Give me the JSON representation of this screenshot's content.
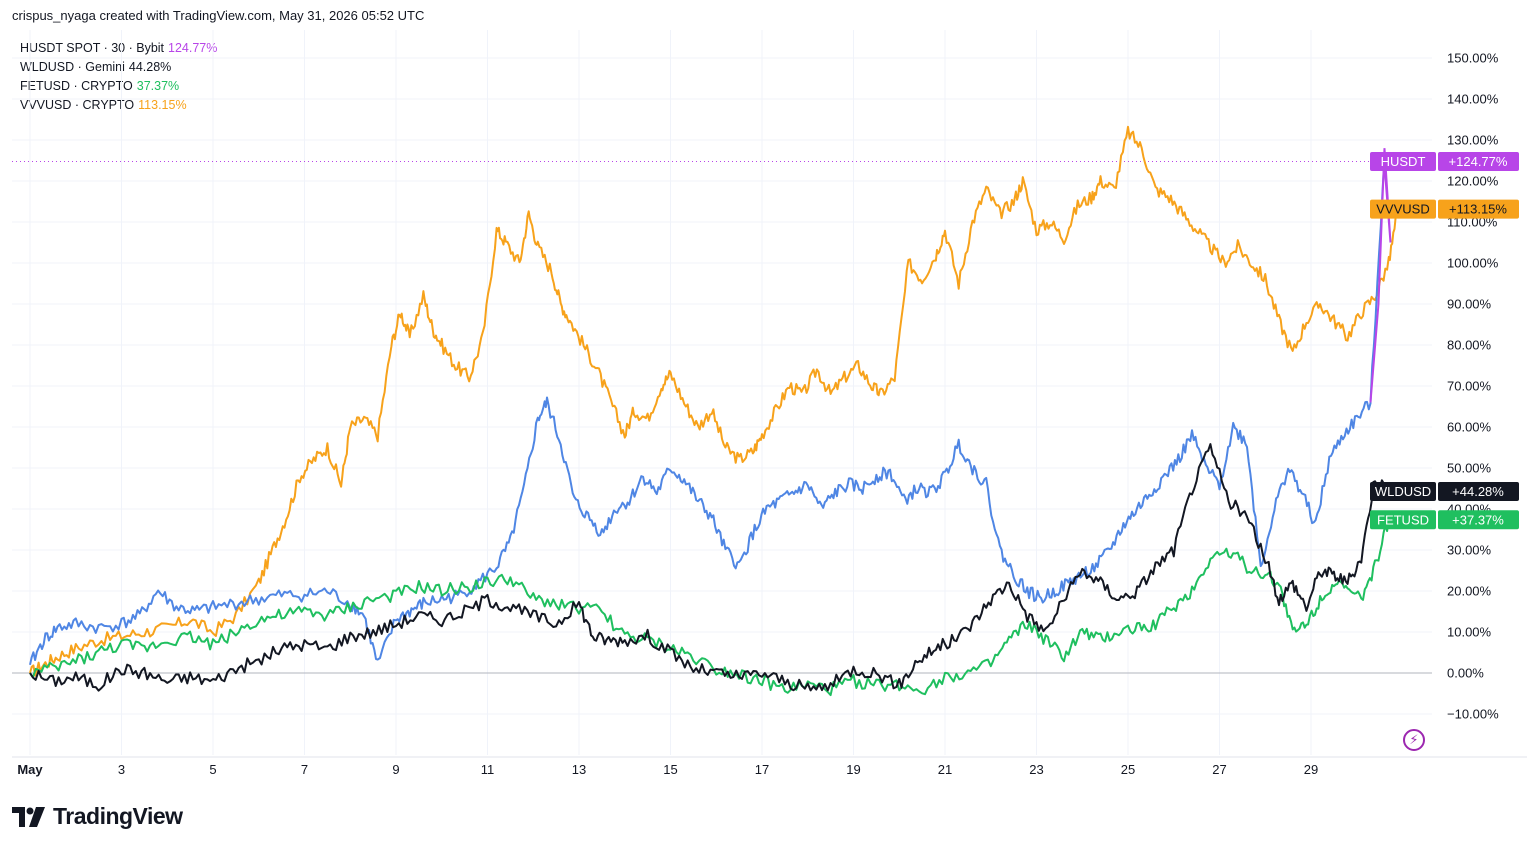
{
  "header": {
    "caption": "crispus_nyaga created with TradingView.com, May 31, 2026 05:52 UTC"
  },
  "legend": [
    {
      "label": "HUSDT SPOT · 30 · Bybit",
      "value": "124.77%",
      "color": "#b845e8"
    },
    {
      "label": "WLDUSD · Gemini",
      "value": "44.28%",
      "color": "#131722"
    },
    {
      "label": "FETUSD · CRYPTO",
      "value": "37.37%",
      "color": "#1fbf5f"
    },
    {
      "label": "VVVUSD · CRYPTO",
      "value": "113.15%",
      "color": "#f7a21b"
    }
  ],
  "price_tags": [
    {
      "name": "HUSDT",
      "value": "+124.77%",
      "color": "#b845e8",
      "level": 124.77
    },
    {
      "name": "VVVUSD",
      "value": "+113.15%",
      "color": "#f7a21b",
      "level": 113.15
    },
    {
      "name": "WLDUSD",
      "value": "+44.28%",
      "color": "#131722",
      "level": 44.28
    },
    {
      "name": "FETUSD",
      "value": "+37.37%",
      "color": "#1fbf5f",
      "level": 37.37
    }
  ],
  "brand": {
    "name": "TradingView"
  },
  "chart_data": {
    "type": "line",
    "y_unit": "% change",
    "ylim": [
      -15,
      155
    ],
    "xlim": [
      1,
      31.5
    ],
    "grid": true,
    "legend_position": "top-left",
    "zero_line": 0,
    "y_ticks": [
      "150.00%",
      "140.00%",
      "130.00%",
      "120.00%",
      "110.00%",
      "100.00%",
      "90.00%",
      "80.00%",
      "70.00%",
      "60.00%",
      "50.00%",
      "40.00%",
      "30.00%",
      "20.00%",
      "10.00%",
      "0.00%",
      "−10.00%"
    ],
    "y_tick_values": [
      150,
      140,
      130,
      120,
      110,
      100,
      90,
      80,
      70,
      60,
      50,
      40,
      30,
      20,
      10,
      0,
      -10
    ],
    "x_ticks": [
      "May",
      "3",
      "5",
      "7",
      "9",
      "11",
      "13",
      "15",
      "17",
      "19",
      "21",
      "23",
      "25",
      "27",
      "29"
    ],
    "x_tick_values": [
      1,
      3,
      5,
      7,
      9,
      11,
      13,
      15,
      17,
      19,
      21,
      23,
      25,
      27,
      29
    ],
    "series": [
      {
        "name": "VVVUSD · CRYPTO",
        "color": "#f7a21b",
        "x": [
          1,
          1.3,
          1.6,
          2,
          2.5,
          3,
          3.5,
          4,
          4.5,
          5,
          5.5,
          6,
          6.3,
          6.6,
          6.9,
          7.2,
          7.5,
          7.8,
          8.0,
          8.3,
          8.6,
          8.9,
          9.1,
          9.3,
          9.6,
          9.8,
          10.0,
          10.3,
          10.6,
          10.9,
          11.2,
          11.4,
          11.7,
          11.9,
          12.1,
          12.4,
          12.6,
          12.8,
          13.1,
          13.4,
          13.7,
          14.0,
          14.2,
          14.5,
          14.8,
          15.0,
          15.3,
          15.6,
          15.9,
          16.2,
          16.5,
          16.8,
          17.0,
          17.3,
          17.6,
          17.9,
          18.2,
          18.5,
          18.8,
          19.1,
          19.4,
          19.6,
          19.9,
          20.2,
          20.5,
          20.8,
          21.0,
          21.3,
          21.6,
          21.9,
          22.2,
          22.5,
          22.7,
          23.0,
          23.3,
          23.6,
          23.9,
          24.2,
          24.4,
          24.7,
          25.0,
          25.3,
          25.6,
          25.9,
          26.2,
          26.5,
          26.8,
          27.1,
          27.4,
          27.7,
          28.0,
          28.3,
          28.6,
          28.9,
          29.2,
          29.5,
          29.8,
          30.1,
          30.4,
          30.7,
          30.9
        ],
        "y": [
          0,
          2,
          4,
          6,
          8,
          9,
          10,
          11,
          13,
          10,
          14,
          22,
          30,
          38,
          48,
          52,
          55,
          46,
          60,
          62,
          58,
          80,
          88,
          82,
          92,
          84,
          80,
          75,
          72,
          82,
          108,
          105,
          100,
          112,
          104,
          98,
          90,
          86,
          80,
          74,
          66,
          58,
          64,
          62,
          70,
          73,
          66,
          60,
          64,
          55,
          52,
          54,
          58,
          64,
          70,
          68,
          74,
          68,
          72,
          75,
          70,
          68,
          72,
          100,
          96,
          102,
          108,
          95,
          110,
          118,
          112,
          115,
          120,
          108,
          110,
          106,
          114,
          116,
          120,
          118,
          132,
          128,
          118,
          116,
          112,
          108,
          104,
          100,
          104,
          100,
          96,
          86,
          78,
          86,
          90,
          86,
          82,
          88,
          92,
          100,
          113.15
        ],
        "end_value": 113.15
      },
      {
        "name": "HUSDT SPOT · 30 · Bybit",
        "color": "#4f86e4",
        "x": [
          1,
          1.3,
          1.6,
          2,
          2.5,
          3,
          3.4,
          3.8,
          4.2,
          4.6,
          5,
          5.5,
          6,
          6.5,
          7,
          7.5,
          8,
          8.3,
          8.6,
          9.0,
          9.3,
          9.6,
          10.0,
          10.4,
          10.8,
          11.2,
          11.5,
          11.8,
          12.1,
          12.3,
          12.6,
          12.9,
          13.2,
          13.5,
          13.8,
          14.1,
          14.4,
          14.7,
          15.0,
          15.3,
          15.6,
          15.9,
          16.2,
          16.5,
          16.8,
          17.1,
          17.4,
          17.7,
          18.0,
          18.3,
          18.6,
          18.9,
          19.2,
          19.5,
          19.8,
          20.1,
          20.4,
          20.7,
          21.0,
          21.3,
          21.6,
          21.9,
          22.2,
          22.5,
          22.8,
          23.1,
          23.4,
          23.7,
          24.0,
          24.3,
          24.6,
          24.9,
          25.2,
          25.5,
          25.8,
          26.1,
          26.4,
          26.7,
          27.0,
          27.3,
          27.6,
          27.9,
          28.2,
          28.5,
          28.8,
          29.1,
          29.4,
          29.7,
          30.0,
          30.3,
          30.6
        ],
        "y": [
          2,
          8,
          11,
          12,
          11,
          12,
          14,
          20,
          16,
          15,
          16,
          17,
          18,
          19,
          19,
          20,
          17,
          14,
          2,
          13,
          15,
          17,
          18,
          19,
          22,
          26,
          32,
          45,
          62,
          66,
          56,
          42,
          38,
          34,
          40,
          42,
          48,
          44,
          50,
          47,
          42,
          38,
          30,
          26,
          34,
          40,
          42,
          44,
          46,
          40,
          44,
          46,
          45,
          48,
          49,
          42,
          45,
          44,
          48,
          56,
          50,
          46,
          30,
          24,
          20,
          18,
          20,
          22,
          24,
          26,
          30,
          36,
          40,
          44,
          48,
          52,
          58,
          50,
          46,
          60,
          56,
          26,
          40,
          50,
          44,
          36,
          52,
          58,
          62,
          66,
          124.77
        ],
        "end_value": 124.77
      },
      {
        "name": "FETUSD · CRYPTO",
        "color": "#1fbf5f",
        "x": [
          1,
          1.5,
          2,
          2.5,
          3,
          3.5,
          4,
          4.5,
          5,
          5.5,
          6,
          6.5,
          7,
          7.5,
          8,
          8.5,
          9,
          9.5,
          10,
          10.5,
          11,
          11.5,
          12,
          12.5,
          13,
          13.5,
          14,
          14.5,
          15,
          15.5,
          16,
          16.5,
          17,
          17.5,
          18,
          18.5,
          19,
          19.5,
          20,
          20.5,
          21,
          21.5,
          22,
          22.4,
          22.8,
          23.2,
          23.6,
          24.0,
          24.4,
          24.8,
          25.2,
          25.6,
          26.0,
          26.4,
          26.8,
          27.2,
          27.6,
          28.0,
          28.3,
          28.6,
          28.9,
          29.2,
          29.5,
          29.8,
          30.1,
          30.4,
          30.7
        ],
        "y": [
          0,
          1,
          3,
          5,
          7,
          6,
          8,
          9,
          7,
          10,
          13,
          14,
          15,
          14,
          16,
          18,
          19,
          21,
          20,
          21,
          22,
          23,
          18,
          17,
          16,
          15,
          9,
          8,
          6,
          4,
          1,
          0,
          -2,
          -4,
          -3,
          -4,
          -2,
          -3,
          -3,
          -4,
          -1,
          0,
          2,
          8,
          12,
          8,
          4,
          10,
          8,
          10,
          11,
          12,
          16,
          20,
          28,
          30,
          26,
          24,
          22,
          10,
          12,
          18,
          22,
          20,
          18,
          26,
          37.37
        ],
        "end_value": 37.37
      },
      {
        "name": "WLDUSD · Gemini",
        "color": "#131722",
        "x": [
          1,
          1.5,
          2,
          2.5,
          3,
          3.5,
          4,
          4.5,
          5,
          5.5,
          6,
          6.5,
          7,
          7.5,
          8,
          8.5,
          9,
          9.5,
          10,
          10.5,
          11,
          11.5,
          12,
          12.5,
          13,
          13.3,
          13.6,
          14,
          14.5,
          15,
          15.5,
          16,
          16.5,
          17,
          17.5,
          18,
          18.5,
          19,
          19.5,
          20,
          20.4,
          20.8,
          21.2,
          21.6,
          22.0,
          22.4,
          22.8,
          23.2,
          23.6,
          24.0,
          24.4,
          24.8,
          25.2,
          25.6,
          26.0,
          26.4,
          26.8,
          27.2,
          27.6,
          28.0,
          28.3,
          28.6,
          28.9,
          29.2,
          29.5,
          29.8,
          30.1,
          30.4,
          30.7
        ],
        "y": [
          0,
          -2,
          -1,
          -3,
          1,
          0,
          -2,
          -1,
          -2,
          1,
          3,
          6,
          7,
          6,
          9,
          10,
          12,
          14,
          13,
          15,
          18,
          16,
          14,
          12,
          17,
          9,
          8,
          8,
          9,
          5,
          1,
          0,
          -1,
          0,
          -2,
          -4,
          -3,
          1,
          0,
          -3,
          3,
          6,
          8,
          12,
          18,
          22,
          14,
          10,
          18,
          25,
          22,
          18,
          20,
          26,
          30,
          45,
          55,
          42,
          38,
          28,
          18,
          22,
          16,
          25,
          24,
          22,
          28,
          48,
          44.28
        ],
        "end_value": 44.28
      }
    ]
  }
}
